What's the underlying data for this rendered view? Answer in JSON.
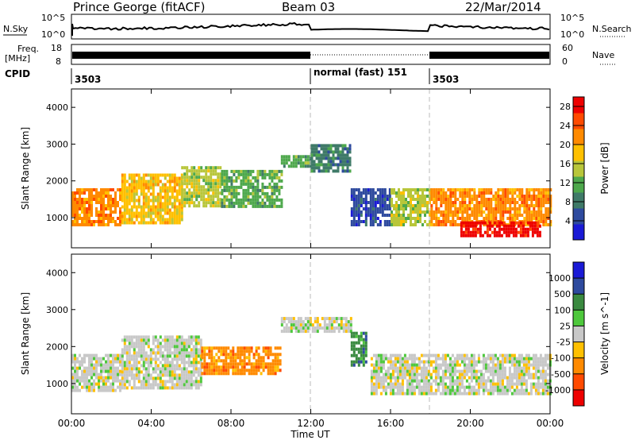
{
  "header": {
    "station": "Prince George (fitACF)",
    "beam": "Beam 03",
    "date": "22/Mar/2014"
  },
  "strips": {
    "nsky_label": "N.Sky",
    "nsearch_label": "N.Search",
    "noise_ticks": [
      "10^5",
      "10^0"
    ],
    "freq_label_1": "Freq.",
    "freq_label_2": "[MHz]",
    "freq_ticks": [
      "18",
      "8"
    ],
    "nave_label": "Nave",
    "nave_ticks": [
      "60",
      "0"
    ],
    "cpid_label": "CPID",
    "cpid_segments": [
      {
        "label": "3503",
        "start_hr": 0
      },
      {
        "label": "normal (fast) 151",
        "start_hr": 12
      },
      {
        "label": "3503",
        "start_hr": 18
      }
    ]
  },
  "colors": {
    "power": [
      "#1a1ad6",
      "#2e4a9e",
      "#3f7a68",
      "#4ea84c",
      "#b8c63a",
      "#ffc000",
      "#ff8a00",
      "#ff4a00",
      "#ee0000"
    ],
    "velocity": [
      "#1a1ad6",
      "#2e4a9e",
      "#3a8a40",
      "#4ec83c",
      "#c8c8c8",
      "#ffc000",
      "#ff8a00",
      "#ff4a00",
      "#ee0000"
    ]
  },
  "chart_data": [
    {
      "type": "heatmap",
      "name": "power",
      "xlabel": "Time UT",
      "ylabel": "Slant Range [km]",
      "xlim": [
        0,
        24
      ],
      "ylim": [
        180,
        4500
      ],
      "x_ticks": [
        "00:00",
        "04:00",
        "08:00",
        "12:00",
        "16:00",
        "20:00",
        "00:00"
      ],
      "y_ticks": [
        1000,
        2000,
        3000,
        4000
      ],
      "colorbar_label": "Power [dB]",
      "colorbar_ticks": [
        4,
        8,
        12,
        16,
        20,
        24,
        28
      ],
      "colorbar_range": [
        0,
        30
      ],
      "echo_bands": [
        {
          "t": [
            0,
            2.5
          ],
          "r": [
            800,
            1800
          ],
          "v": 22
        },
        {
          "t": [
            2.5,
            5.5
          ],
          "r": [
            900,
            2200
          ],
          "v": 18
        },
        {
          "t": [
            5.5,
            7.5
          ],
          "r": [
            1300,
            2400
          ],
          "v": 14
        },
        {
          "t": [
            7.5,
            10.5
          ],
          "r": [
            1300,
            2300
          ],
          "v": 12
        },
        {
          "t": [
            10.5,
            12
          ],
          "r": [
            2400,
            2700
          ],
          "v": 10
        },
        {
          "t": [
            12,
            14
          ],
          "r": [
            2300,
            3000
          ],
          "v": 8
        },
        {
          "t": [
            14,
            16
          ],
          "r": [
            800,
            1800
          ],
          "v": 6
        },
        {
          "t": [
            16,
            18
          ],
          "r": [
            800,
            1800
          ],
          "v": 16
        },
        {
          "t": [
            18,
            24
          ],
          "r": [
            800,
            1800
          ],
          "v": 22
        },
        {
          "t": [
            19.5,
            23.5
          ],
          "r": [
            550,
            900
          ],
          "v": 28
        }
      ]
    },
    {
      "type": "heatmap",
      "name": "velocity",
      "xlabel": "Time UT",
      "ylabel": "Slant Range [km]",
      "xlim": [
        0,
        24
      ],
      "ylim": [
        180,
        4500
      ],
      "x_ticks": [
        "00:00",
        "04:00",
        "08:00",
        "12:00",
        "16:00",
        "20:00",
        "00:00"
      ],
      "y_ticks": [
        1000,
        2000,
        3000,
        4000
      ],
      "colorbar_label": "Velocity [m s^-1]",
      "colorbar_ticks": [
        "1000",
        "500",
        "100",
        "25",
        "-25",
        "-100",
        "-500",
        "-1000"
      ],
      "echo_bands": [
        {
          "t": [
            0,
            2.5
          ],
          "r": [
            800,
            1800
          ],
          "v": 0
        },
        {
          "t": [
            2.5,
            6.5
          ],
          "r": [
            900,
            2300
          ],
          "v": 0
        },
        {
          "t": [
            6.5,
            8.5
          ],
          "r": [
            1300,
            2000
          ],
          "v": -300
        },
        {
          "t": [
            8.5,
            10.5
          ],
          "r": [
            1300,
            2000
          ],
          "v": -150
        },
        {
          "t": [
            10.5,
            14
          ],
          "r": [
            2400,
            2800
          ],
          "v": 0
        },
        {
          "t": [
            14,
            14.8
          ],
          "r": [
            1500,
            2400
          ],
          "v": 150
        },
        {
          "t": [
            15,
            24
          ],
          "r": [
            700,
            1800
          ],
          "v": 0
        }
      ]
    }
  ]
}
